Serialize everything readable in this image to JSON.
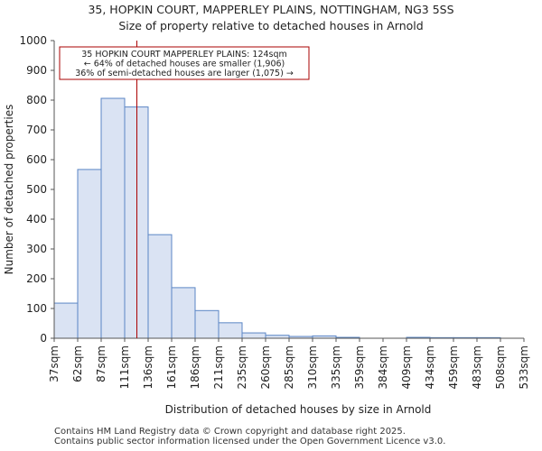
{
  "chart_data": {
    "type": "bar",
    "title": "35, HOPKIN COURT, MAPPERLEY PLAINS, NOTTINGHAM, NG3 5SS",
    "subtitle": "Size of property relative to detached houses in Arnold",
    "xlabel": "Distribution of detached houses by size in Arnold",
    "ylabel": "Number of detached properties",
    "categories": [
      "37sqm",
      "62sqm",
      "87sqm",
      "111sqm",
      "136sqm",
      "161sqm",
      "186sqm",
      "211sqm",
      "235sqm",
      "260sqm",
      "285sqm",
      "310sqm",
      "335sqm",
      "359sqm",
      "384sqm",
      "409sqm",
      "434sqm",
      "459sqm",
      "483sqm",
      "508sqm",
      "533sqm"
    ],
    "values": [
      118,
      567,
      806,
      777,
      348,
      170,
      93,
      52,
      18,
      10,
      6,
      8,
      3,
      0,
      0,
      3,
      2,
      2,
      2,
      0,
      0
    ],
    "yticks": [
      0,
      100,
      200,
      300,
      400,
      500,
      600,
      700,
      800,
      900,
      1000
    ],
    "ylim": [
      0,
      1000
    ],
    "bar_color": "#dae3f3",
    "bar_edge_color": "#5b86c5",
    "marker": {
      "value_sqm": 124,
      "color": "#aa0000",
      "lines": [
        "35 HOPKIN COURT MAPPERLEY PLAINS: 124sqm",
        "← 64% of detached houses are smaller (1,906)",
        "36% of semi-detached houses are larger (1,075) →"
      ]
    }
  },
  "footer": {
    "line1": "Contains HM Land Registry data © Crown copyright and database right 2025.",
    "line2": "Contains public sector information licensed under the Open Government Licence v3.0."
  }
}
